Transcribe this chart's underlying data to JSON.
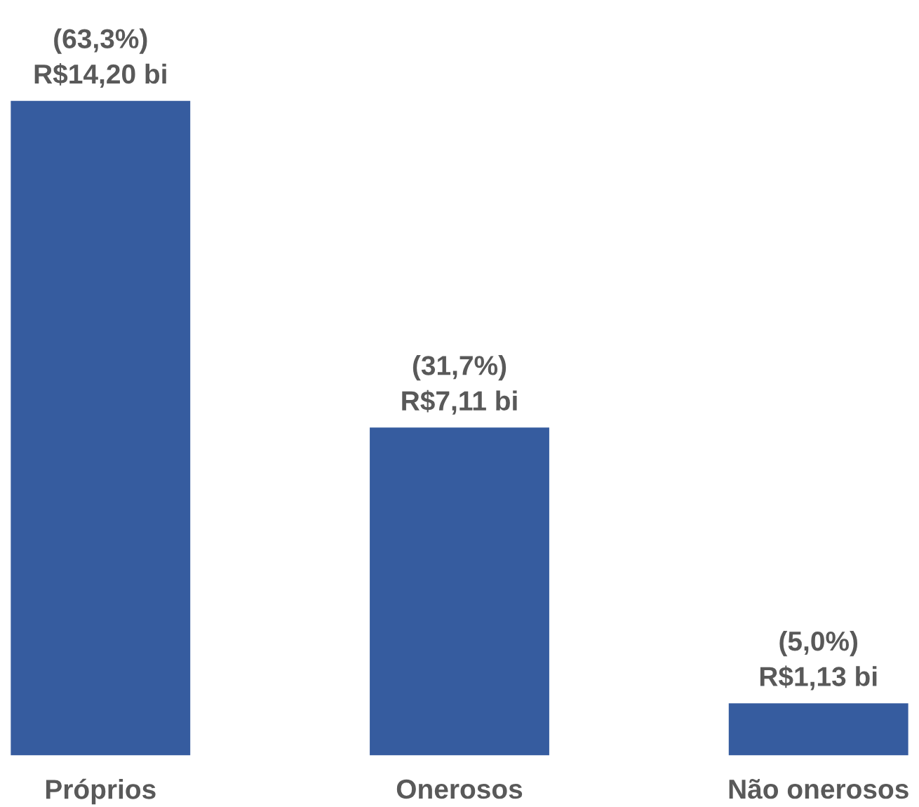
{
  "chart_data": {
    "type": "bar",
    "categories": [
      "Próprios",
      "Onerosos",
      "Não onerosos"
    ],
    "values": [
      14.2,
      7.11,
      1.13
    ],
    "value_labels": [
      "(63,3%)\nR$14,20 bi",
      "(31,7%)\nR$7,11 bi",
      "(5,0%)\nR$1,13 bi"
    ],
    "color": "#365c9f",
    "grid": false,
    "legend": false
  }
}
